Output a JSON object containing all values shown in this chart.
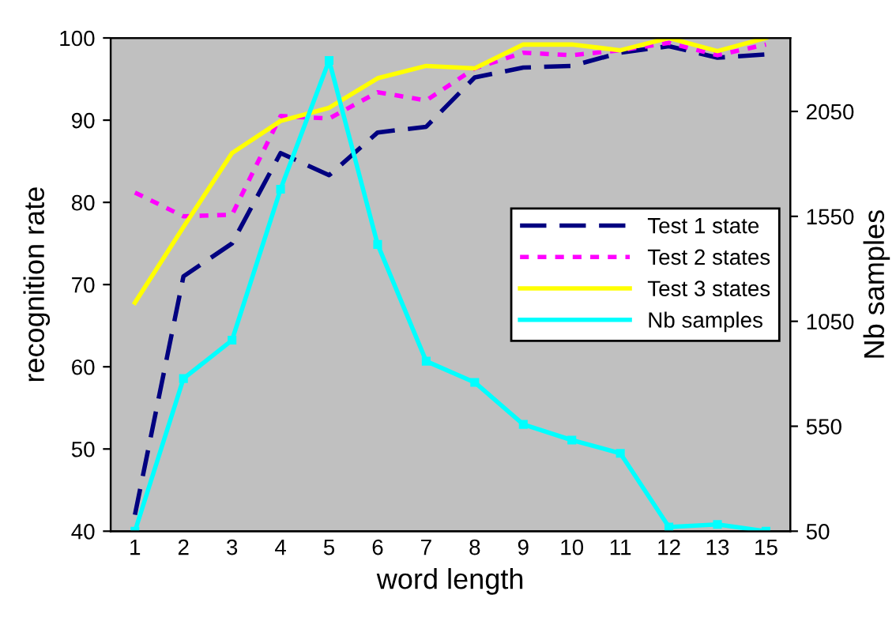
{
  "chart_data": {
    "type": "line",
    "xlabel": "word length",
    "ylabel": "recognition rate",
    "y2label": "Nb samples",
    "categories": [
      "1",
      "2",
      "3",
      "4",
      "5",
      "6",
      "7",
      "8",
      "9",
      "10",
      "11",
      "12",
      "13",
      "15"
    ],
    "series": [
      {
        "name": "Test 1 state",
        "color": "#000080",
        "line_style": "dashed",
        "marker": "none",
        "values": [
          42,
          71,
          75,
          86,
          83.3,
          88.5,
          89.2,
          95.2,
          96.4,
          96.6,
          98.2,
          99,
          97.6,
          98
        ]
      },
      {
        "name": "Test 2 states",
        "color": "#ff00ff",
        "line_style": "dotted",
        "marker": "none",
        "values": [
          81.2,
          78.3,
          78.5,
          90.5,
          90.2,
          93.4,
          92.4,
          96.3,
          98.2,
          97.9,
          98.5,
          99.4,
          97.9,
          99.2
        ]
      },
      {
        "name": "Test 3 states",
        "color": "#ffff00",
        "line_style": "solid",
        "marker": "none",
        "values": [
          67.8,
          77,
          86,
          89.9,
          91.5,
          95.1,
          96.6,
          96.3,
          99.2,
          99.2,
          98.5,
          100,
          98.4,
          100
        ]
      },
      {
        "name": "Nb samples",
        "color": "#00ffff",
        "line_style": "solid",
        "marker": "square",
        "axis": "y2",
        "values": [
          50,
          777,
          960,
          1679,
          2293,
          1416,
          860,
          759,
          559,
          484,
          421,
          70,
          82,
          50
        ]
      }
    ],
    "ylim": [
      40,
      100
    ],
    "yticks": [
      40,
      50,
      60,
      70,
      80,
      90,
      100
    ],
    "y2lim": [
      50,
      2400
    ],
    "y2ticks": [
      50,
      550,
      1050,
      1550,
      2050
    ],
    "grid": false,
    "legend": "right"
  }
}
